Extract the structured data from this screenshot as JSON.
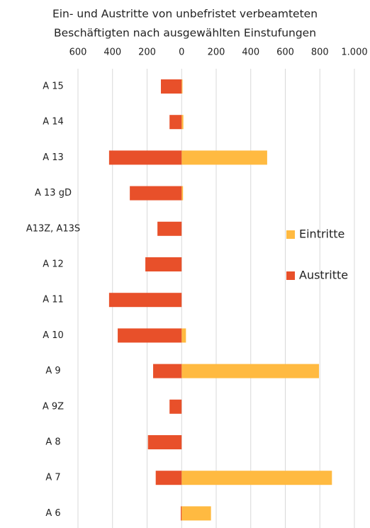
{
  "chart_data": {
    "type": "bar",
    "orientation": "horizontal",
    "title": [
      "Ein- und Austritte von unbefristet verbeamteten",
      "Beschäftigten nach ausgewählten Einstufungen"
    ],
    "categories": [
      "A 15",
      "A 14",
      "A 13",
      "A 13 gD",
      "A13Z, A13S",
      "A 12",
      "A 11",
      "A 10",
      "A 9",
      "A 9Z",
      "A 8",
      "A 7",
      "A 6"
    ],
    "series": [
      {
        "name": "Eintritte",
        "color": "#ffba41",
        "values": [
          5,
          10,
          495,
          8,
          0,
          0,
          0,
          25,
          795,
          0,
          0,
          870,
          170
        ]
      },
      {
        "name": "Austritte",
        "color": "#e8502a",
        "values": [
          -120,
          -70,
          -420,
          -300,
          -140,
          -210,
          -420,
          -370,
          -165,
          -70,
          -195,
          -150,
          -5
        ]
      }
    ],
    "xlim": [
      -600,
      1000
    ],
    "xticks": [
      {
        "value": -600,
        "label": "600"
      },
      {
        "value": -400,
        "label": "400"
      },
      {
        "value": -200,
        "label": "200"
      },
      0,
      200,
      400,
      600,
      800,
      {
        "value": 1000,
        "label": "1.000"
      }
    ],
    "grid": true,
    "legend": "right"
  }
}
